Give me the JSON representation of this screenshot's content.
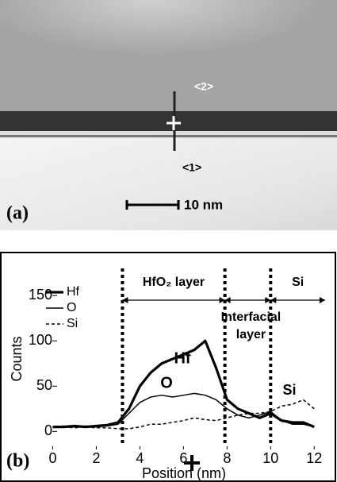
{
  "panel_a": {
    "label": "(a)",
    "markers": [
      "<2>",
      "<1>"
    ],
    "scale_bar": "10 nm"
  },
  "chart_data": {
    "type": "line",
    "panel_label": "(b)",
    "x_label": "Position (nm)",
    "y_label": "Counts",
    "x": [
      0,
      0.5,
      1,
      1.5,
      2,
      2.5,
      3,
      3.5,
      4,
      4.5,
      5,
      5.5,
      6,
      6.5,
      7,
      7.5,
      8,
      8.5,
      9,
      9.5,
      10,
      10.5,
      11,
      11.5,
      12
    ],
    "series": [
      {
        "name": "Hf",
        "color": "#000",
        "values": [
          5,
          5,
          6,
          5,
          6,
          7,
          10,
          25,
          50,
          65,
          75,
          80,
          85,
          90,
          100,
          70,
          35,
          25,
          20,
          15,
          20,
          12,
          10,
          10,
          5
        ]
      },
      {
        "name": "O",
        "color": "#000",
        "values": [
          5,
          6,
          5,
          6,
          5,
          6,
          8,
          20,
          32,
          38,
          40,
          38,
          40,
          42,
          40,
          35,
          25,
          18,
          15,
          18,
          22,
          12,
          8,
          8,
          5
        ]
      },
      {
        "name": "Si",
        "color": "#000",
        "values": [
          5,
          5,
          4,
          5,
          4,
          4,
          3,
          3,
          5,
          8,
          8,
          10,
          12,
          15,
          13,
          12,
          15,
          18,
          20,
          20,
          22,
          28,
          30,
          35,
          25
        ]
      }
    ],
    "xlim": [
      -0.6,
      12.5
    ],
    "ylim": [
      -19,
      187
    ],
    "xticks": [
      0,
      2,
      4,
      6,
      8,
      10,
      12
    ],
    "yticks": [
      0,
      50,
      100,
      150
    ],
    "boundaries": [
      3.2,
      7.9,
      10
    ],
    "annotations": [
      "HfO₂ layer",
      "Si",
      "Interfacial",
      "layer"
    ],
    "series_labels": [
      "Hf",
      "O",
      "Si"
    ]
  }
}
